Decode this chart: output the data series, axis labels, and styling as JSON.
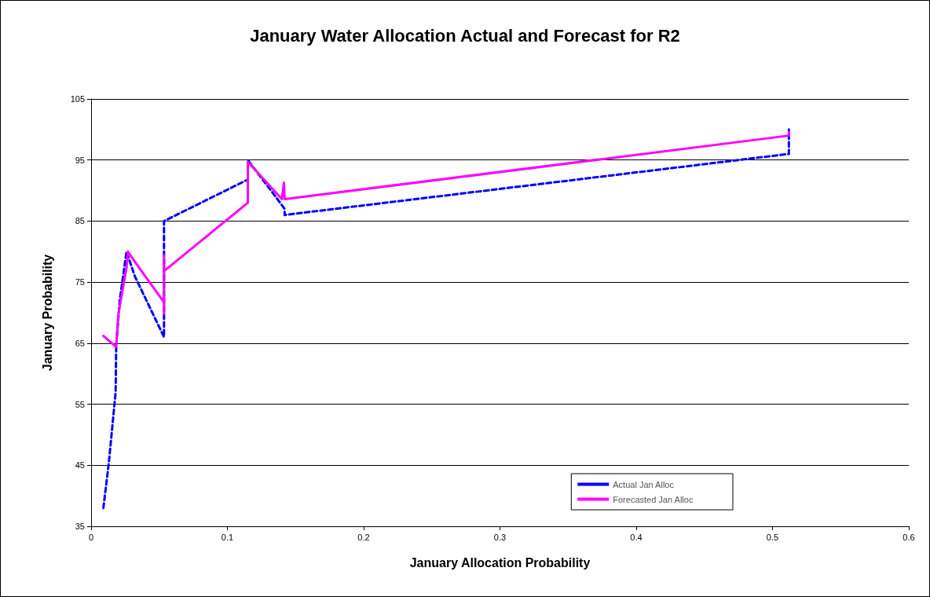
{
  "chart_data": {
    "type": "line",
    "title": "January Water Allocation Actual and Forecast for R2",
    "xlabel": "January Allocation Probability",
    "ylabel": "January Probability",
    "xlim": [
      0,
      0.6
    ],
    "xticks": [
      0,
      0.1,
      0.2,
      0.3,
      0.4,
      0.5,
      0.6
    ],
    "ylim": [
      35,
      105
    ],
    "yticks": [
      35,
      45,
      55,
      65,
      75,
      85,
      95,
      105
    ],
    "grid": "y",
    "legend": "bottom right",
    "marker": "none",
    "series": [
      {
        "name": "Actual Jan Alloc",
        "color": "#0000ff",
        "line_style": "dashed",
        "x": [
          0.009,
          0.013,
          0.018,
          0.0184,
          0.021,
          0.026,
          0.032,
          0.0535,
          0.0535,
          0.115,
          0.115,
          0.132,
          0.142,
          0.142,
          0.512,
          0.512
        ],
        "values": [
          38,
          45.4,
          57,
          64.6,
          72,
          80,
          76,
          66,
          85,
          91.8,
          95,
          90,
          87,
          86,
          96,
          100
        ]
      },
      {
        "name": "Forecasted Jan Alloc",
        "color": "#ff00ff",
        "line_style": "solid",
        "x": [
          0.009,
          0.0184,
          0.02,
          0.023,
          0.026,
          0.027,
          0.037,
          0.0535,
          0.0535,
          0.0535,
          0.0535,
          0.115,
          0.115,
          0.14,
          0.1415,
          0.142,
          0.512,
          0.512
        ],
        "values": [
          66.2,
          64.4,
          69.7,
          73.6,
          77.4,
          80,
          76.8,
          71.7,
          69.8,
          79.4,
          76.8,
          88,
          94.7,
          88.6,
          91.3,
          88.6,
          99,
          99.6
        ]
      }
    ]
  }
}
